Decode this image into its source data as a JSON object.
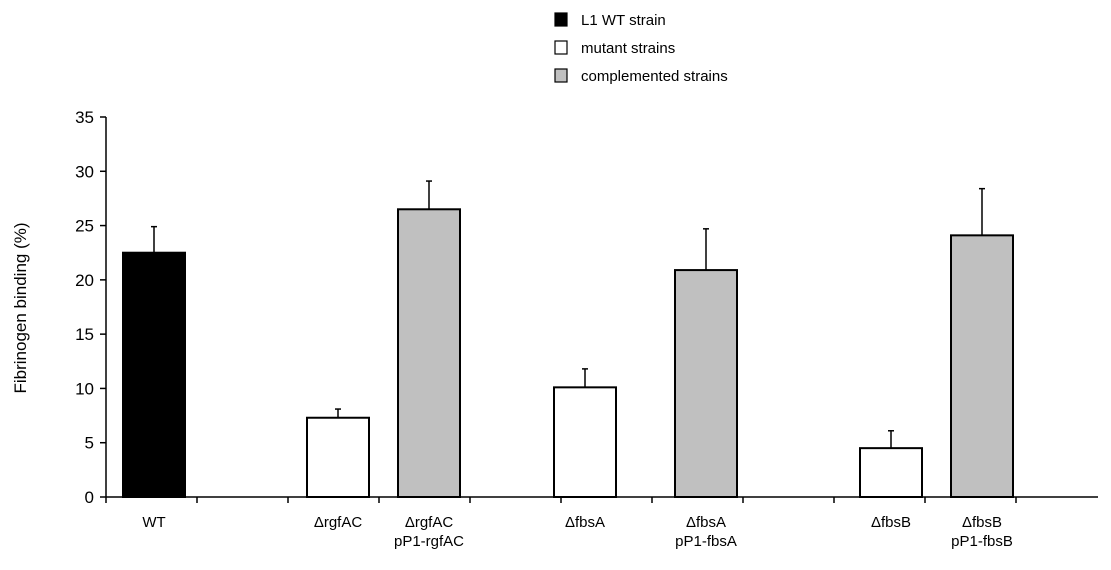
{
  "chart_data": {
    "type": "bar",
    "title": "",
    "xlabel": "",
    "ylabel": "Fibrinogen binding (%)",
    "ylim": [
      0,
      35
    ],
    "yticks": [
      0,
      5,
      10,
      15,
      20,
      25,
      30,
      35
    ],
    "grid": false,
    "legend_position": "top-center",
    "groups": [
      {
        "name": "L1 WT strain",
        "color": "#000000"
      },
      {
        "name": "mutant strains",
        "color": "#ffffff"
      },
      {
        "name": "complemented strains",
        "color": "#c0c0c0"
      }
    ],
    "bars": [
      {
        "label": [
          "WT"
        ],
        "value": 22.5,
        "error": 2.4,
        "group": 0
      },
      {
        "label": [
          "ΔrgfAC"
        ],
        "value": 7.3,
        "error": 0.8,
        "group": 1
      },
      {
        "label": [
          "ΔrgfAC",
          "pP1-rgfAC"
        ],
        "value": 26.5,
        "error": 2.6,
        "group": 2
      },
      {
        "label": [
          "ΔfbsA"
        ],
        "value": 10.1,
        "error": 1.7,
        "group": 1
      },
      {
        "label": [
          "ΔfbsA",
          "pP1-fbsA"
        ],
        "value": 20.9,
        "error": 3.8,
        "group": 2
      },
      {
        "label": [
          "ΔfbsB"
        ],
        "value": 4.5,
        "error": 1.6,
        "group": 1
      },
      {
        "label": [
          "ΔfbsB",
          "pP1-fbsB"
        ],
        "value": 24.1,
        "error": 4.3,
        "group": 2
      }
    ]
  }
}
